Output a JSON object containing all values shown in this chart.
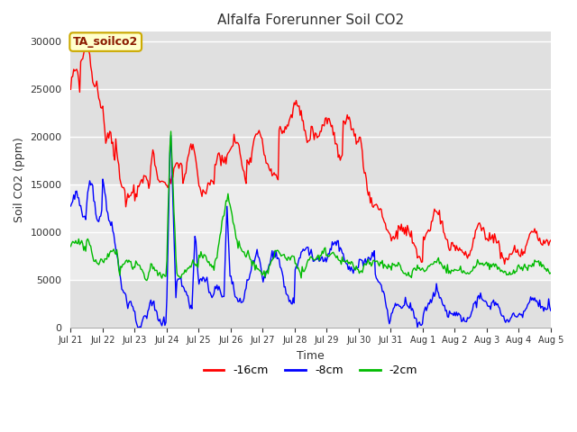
{
  "title": "Alfalfa Forerunner Soil CO2",
  "xlabel": "Time",
  "ylabel": "Soil CO2 (ppm)",
  "legend_label": "TA_soilco2",
  "series_labels": [
    "-16cm",
    "-8cm",
    "-2cm"
  ],
  "series_colors": [
    "#ff0000",
    "#0000ff",
    "#00bb00"
  ],
  "ylim": [
    0,
    31000
  ],
  "yticks": [
    0,
    5000,
    10000,
    15000,
    20000,
    25000,
    30000
  ],
  "background_color": "#ffffff",
  "plot_bg_color": "#e0e0e0",
  "shaded_band_color": "#ececec",
  "shaded_band": [
    5000,
    15000
  ],
  "grid_color": "#ffffff",
  "x_tick_labels": [
    "Jul 21",
    "Jul 22",
    "Jul 23",
    "Jul 24",
    "Jul 25",
    "Jul 26",
    "Jul 27",
    "Jul 28",
    "Jul 29",
    "Jul 30",
    "Jul 31",
    "Aug 1",
    "Aug 2",
    "Aug 3",
    "Aug 4",
    "Aug 5"
  ],
  "n_points": 480
}
